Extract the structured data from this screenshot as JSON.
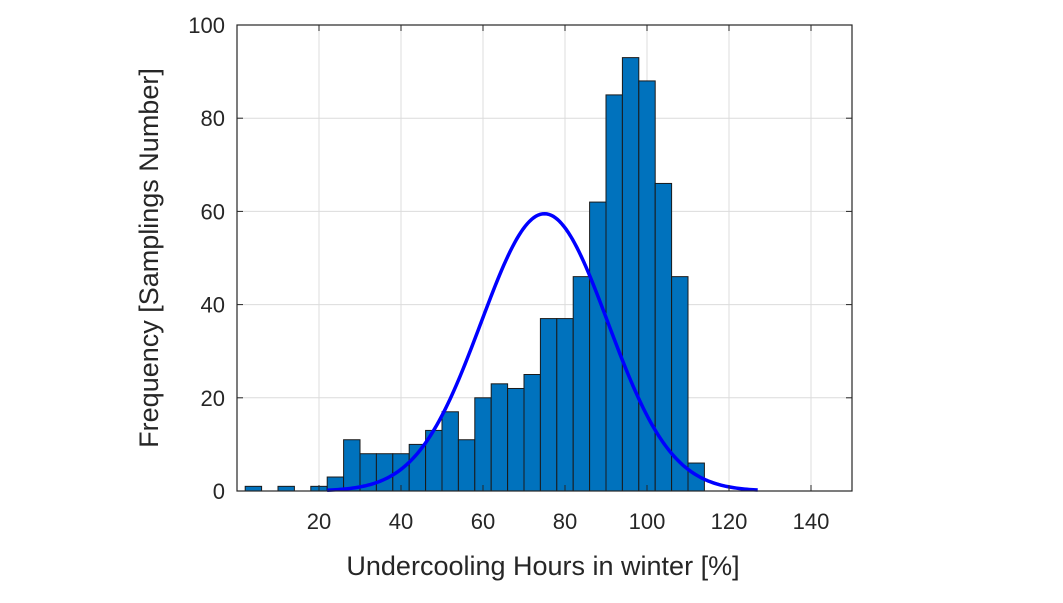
{
  "chart_data": {
    "type": "bar",
    "xlabel": "Undercooling Hours in winter [%]",
    "ylabel": "Frequency [Samplings Number]",
    "xlim": [
      0,
      150
    ],
    "ylim": [
      0,
      100
    ],
    "xticks": [
      20,
      40,
      60,
      80,
      100,
      120,
      140
    ],
    "yticks": [
      0,
      20,
      40,
      60,
      80,
      100
    ],
    "grid": true,
    "bin_width": 4,
    "series": [
      {
        "kind": "histogram",
        "color": "#0072BD",
        "bins": [
          {
            "x": [
              2,
              6
            ],
            "count": 1
          },
          {
            "x": [
              6,
              10
            ],
            "count": 0
          },
          {
            "x": [
              10,
              14
            ],
            "count": 1
          },
          {
            "x": [
              14,
              18
            ],
            "count": 0
          },
          {
            "x": [
              18,
              22
            ],
            "count": 1
          },
          {
            "x": [
              22,
              26
            ],
            "count": 3
          },
          {
            "x": [
              26,
              30
            ],
            "count": 11
          },
          {
            "x": [
              30,
              34
            ],
            "count": 8
          },
          {
            "x": [
              34,
              38
            ],
            "count": 8
          },
          {
            "x": [
              38,
              42
            ],
            "count": 8
          },
          {
            "x": [
              42,
              46
            ],
            "count": 10
          },
          {
            "x": [
              46,
              50
            ],
            "count": 13
          },
          {
            "x": [
              50,
              54
            ],
            "count": 17
          },
          {
            "x": [
              54,
              58
            ],
            "count": 11
          },
          {
            "x": [
              58,
              62
            ],
            "count": 20
          },
          {
            "x": [
              62,
              66
            ],
            "count": 23
          },
          {
            "x": [
              66,
              70
            ],
            "count": 22
          },
          {
            "x": [
              70,
              74
            ],
            "count": 25
          },
          {
            "x": [
              74,
              78
            ],
            "count": 37
          },
          {
            "x": [
              78,
              82
            ],
            "count": 37
          },
          {
            "x": [
              82,
              86
            ],
            "count": 46
          },
          {
            "x": [
              86,
              90
            ],
            "count": 62
          },
          {
            "x": [
              90,
              94
            ],
            "count": 85
          },
          {
            "x": [
              94,
              98
            ],
            "count": 93
          },
          {
            "x": [
              98,
              102
            ],
            "count": 88
          },
          {
            "x": [
              102,
              106
            ],
            "count": 66
          },
          {
            "x": [
              106,
              110
            ],
            "count": 46
          },
          {
            "x": [
              110,
              114
            ],
            "count": 6
          }
        ]
      },
      {
        "kind": "fitted-normal-curve",
        "color": "#0000FF",
        "mean": 75,
        "peak": 59.5,
        "sigma": 15.5,
        "x_range": [
          22,
          127
        ]
      }
    ]
  }
}
